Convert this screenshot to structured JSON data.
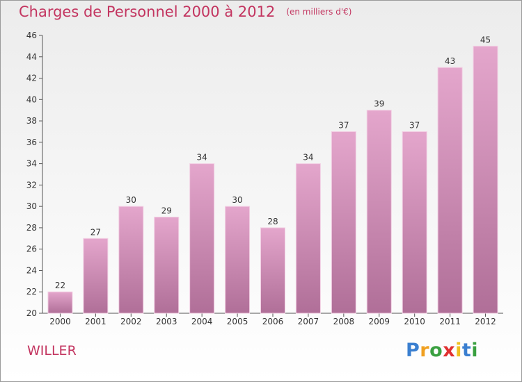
{
  "title": "Charges de Personnel 2000 à 2012",
  "unit_note": "(en milliers d'€)",
  "commune": "WILLER",
  "logo": {
    "letters": [
      "P",
      "r",
      "o",
      "x",
      "i",
      "t",
      "i"
    ],
    "colors": [
      "#3a7fd0",
      "#f0a020",
      "#3aa040",
      "#e03030",
      "#f0c020",
      "#3a7fd0",
      "#3aa040"
    ]
  },
  "colors": {
    "title": "#c33560",
    "bar_top": "#e4a6cc",
    "bar_bottom": "#b06f98"
  },
  "chart_data": {
    "type": "bar",
    "categories": [
      "2000",
      "2001",
      "2002",
      "2003",
      "2004",
      "2005",
      "2006",
      "2007",
      "2008",
      "2009",
      "2010",
      "2011",
      "2012"
    ],
    "values": [
      22,
      27,
      30,
      29,
      34,
      30,
      28,
      34,
      37,
      39,
      37,
      43,
      45
    ],
    "ylim": [
      20,
      46
    ],
    "yticks": [
      20,
      22,
      24,
      26,
      28,
      30,
      32,
      34,
      36,
      38,
      40,
      42,
      44,
      46
    ],
    "grid": false,
    "data_labels": true
  }
}
